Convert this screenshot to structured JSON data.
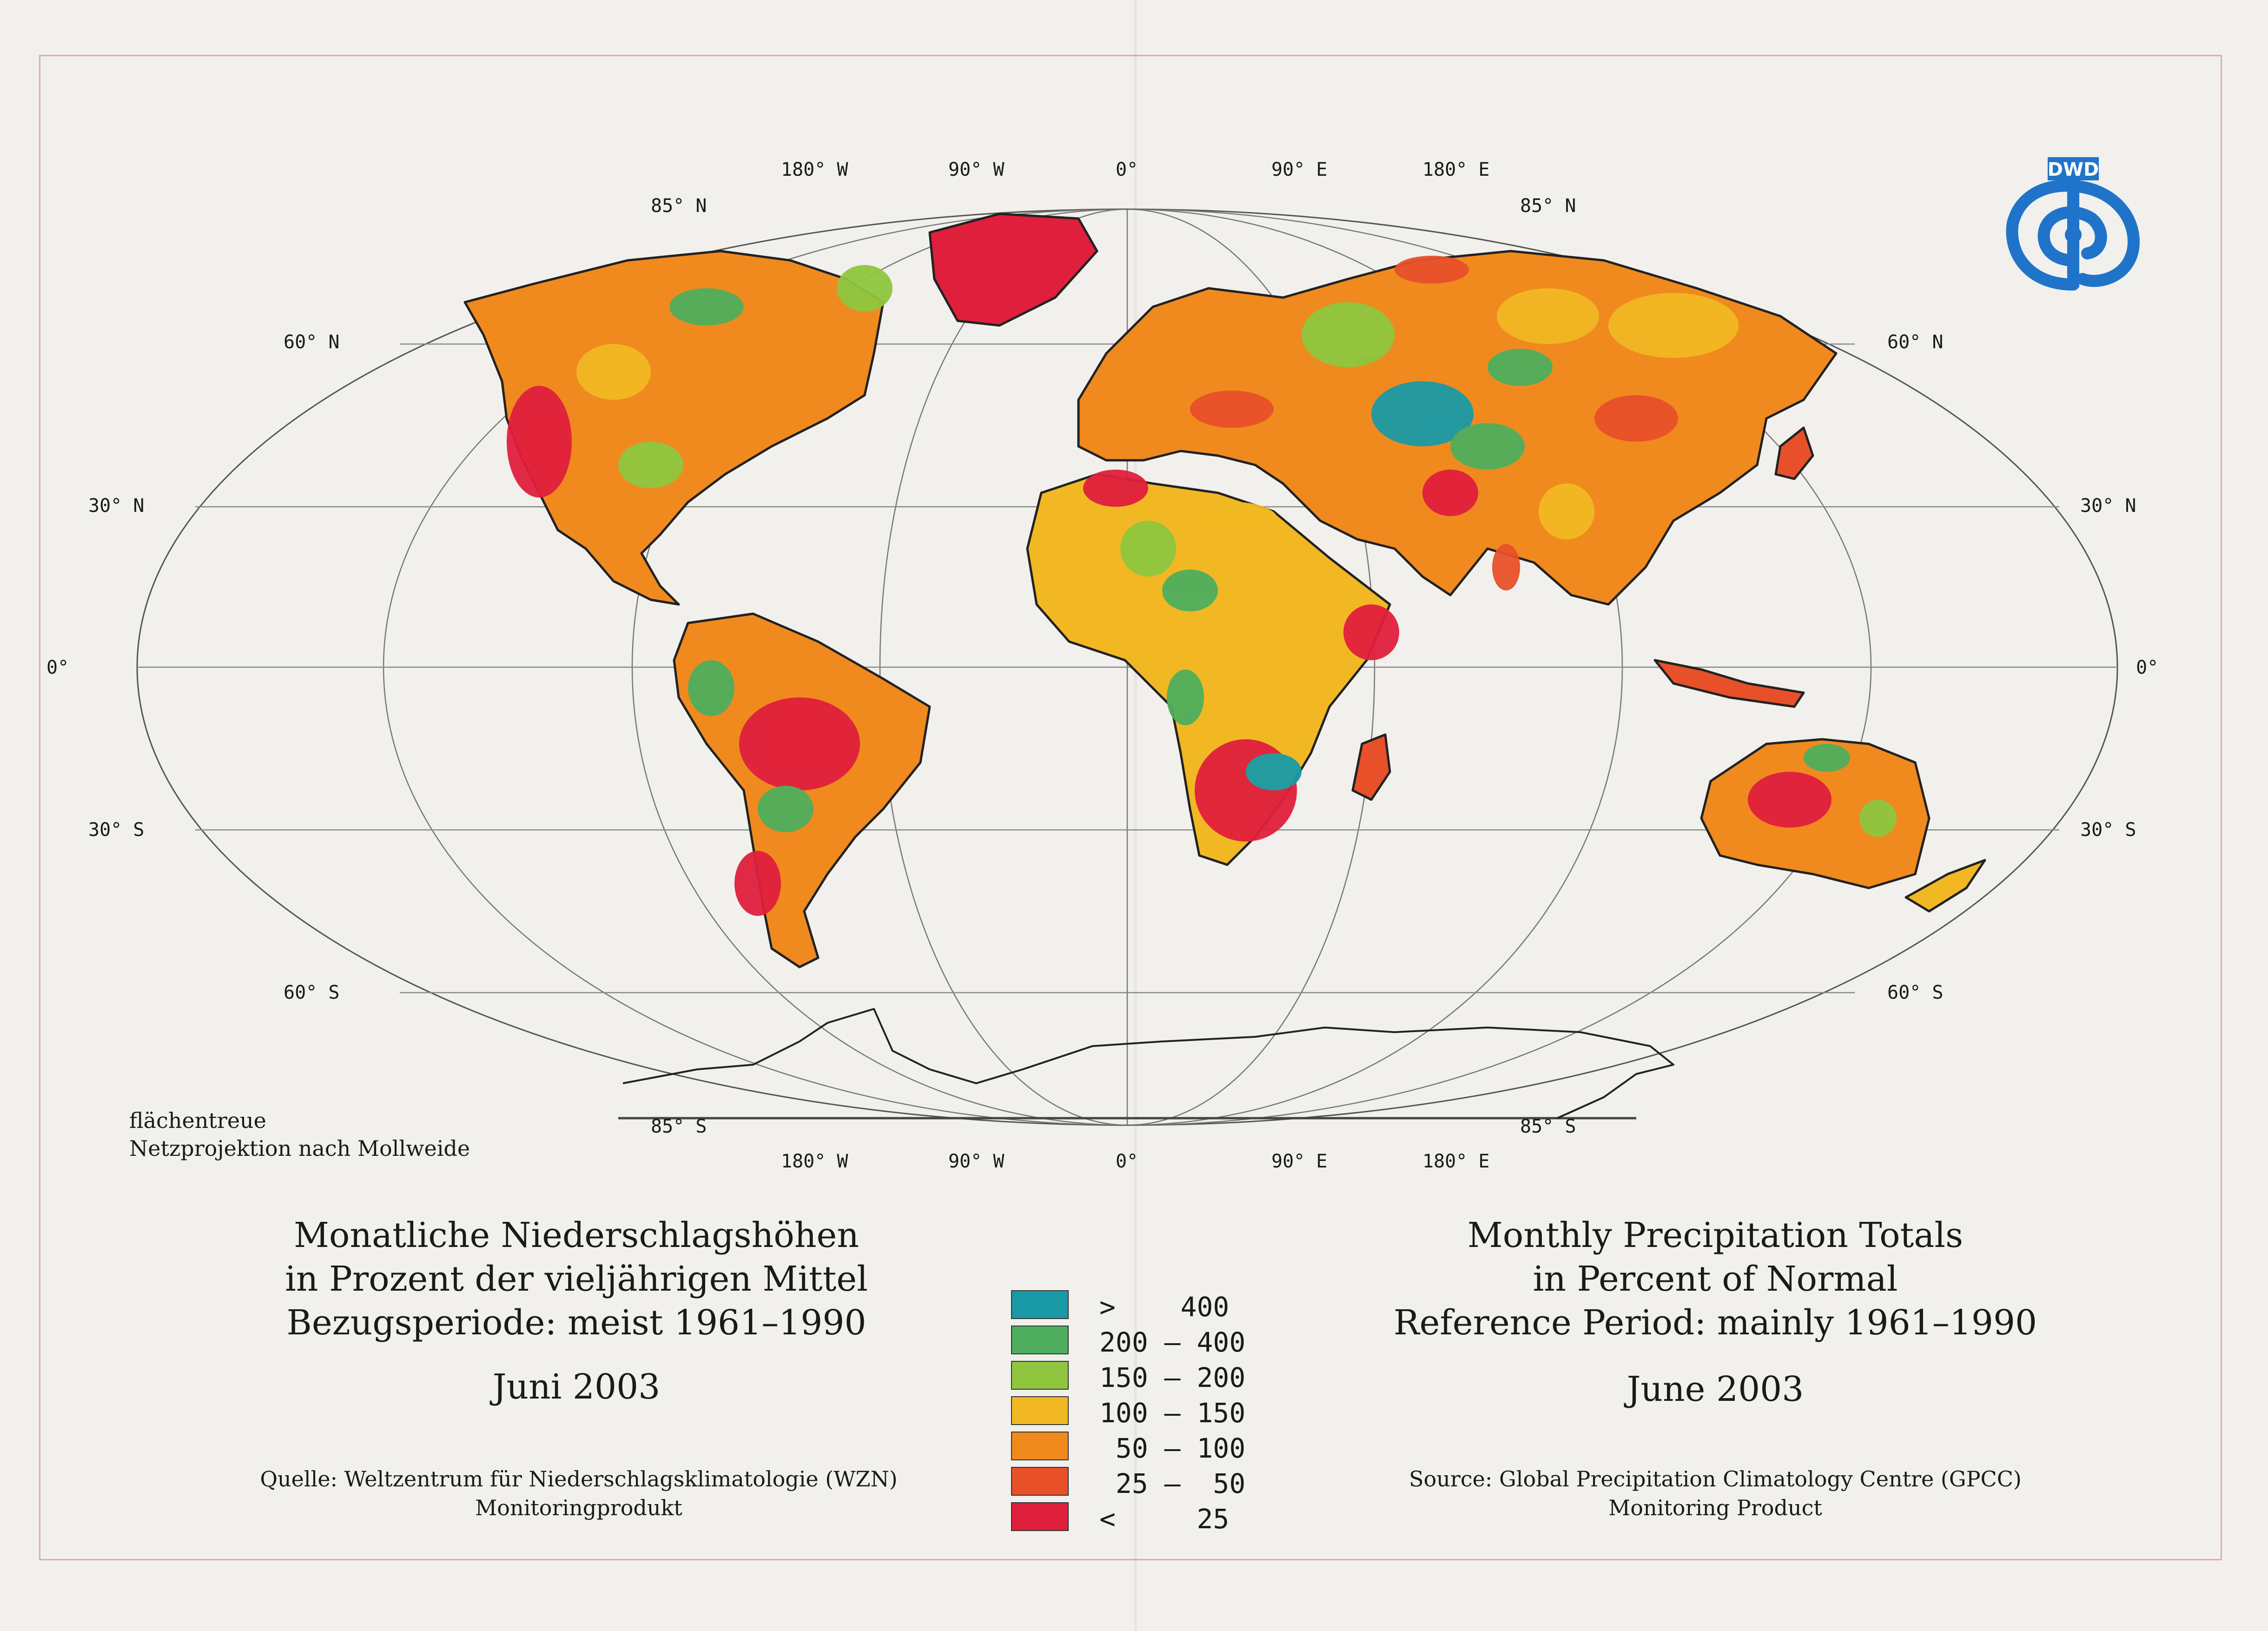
{
  "map": {
    "coords_top": {
      "lon_180w": "180° W",
      "lon_90w": "90° W",
      "lon_0": "0°",
      "lon_90e": "90° E",
      "lon_180e": "180° E",
      "lat_85n_left": "85° N",
      "lat_85n_right": "85° N"
    },
    "coords_bottom": {
      "lon_180w": "180° W",
      "lon_90w": "90° W",
      "lon_0": "0°",
      "lon_90e": "90° E",
      "lon_180e": "180° E",
      "lat_85s_left": "85° S",
      "lat_85s_right": "85° S"
    },
    "lat_left": {
      "l60n": "60° N",
      "l30n": "30° N",
      "l0": "0°",
      "l30s": "30° S",
      "l60s": "60° S"
    },
    "lat_right": {
      "l60n": "60° N",
      "l30n": "30° N",
      "l0": "0°",
      "l30s": "30° S",
      "l60s": "60° S"
    },
    "projection": {
      "line1": "flächentreue",
      "line2": "Netzprojektion nach Mollweide"
    }
  },
  "logo": {
    "text": "DWD",
    "color": "#1f74c9"
  },
  "german": {
    "title1": "Monatliche Niederschlagshöhen",
    "title2": "in Prozent der vieljährigen Mittel",
    "title3": "Bezugsperiode: meist 1961–1990",
    "date": "Juni 2003",
    "source1": "Quelle: Weltzentrum für Niederschlagsklimatologie (WZN)",
    "source2": "Monitoringprodukt"
  },
  "english": {
    "title1": "Monthly Precipitation Totals",
    "title2": "in Percent of Normal",
    "title3": "Reference Period: mainly 1961–1990",
    "date": "June 2003",
    "source1": "Source: Global Precipitation Climatology Centre (GPCC)",
    "source2": "Monitoring Product"
  },
  "legend": [
    {
      "label": ">    400",
      "color": "#1a9aa6"
    },
    {
      "label": "200 – 400",
      "color": "#4eae5d"
    },
    {
      "label": "150 – 200",
      "color": "#8ec63f"
    },
    {
      "label": "100 – 150",
      "color": "#f2b824"
    },
    {
      "label": " 50 – 100",
      "color": "#f08a1e"
    },
    {
      "label": " 25 –  50",
      "color": "#e8502a"
    },
    {
      "label": "<     25",
      "color": "#e01f3d"
    }
  ]
}
